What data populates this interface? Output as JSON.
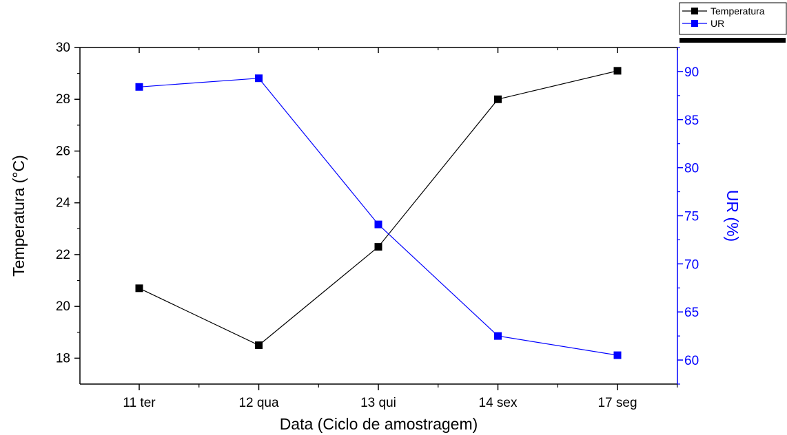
{
  "chart_data": {
    "type": "line",
    "categories": [
      "11 ter",
      "12 qua",
      "13 qui",
      "14 sex",
      "17 seg"
    ],
    "xlabel": "Data (Ciclo de amostragem)",
    "series": [
      {
        "name": "Temperatura",
        "axis": "left",
        "color": "#000000",
        "values": [
          20.7,
          18.5,
          22.3,
          28.0,
          29.1
        ]
      },
      {
        "name": "UR",
        "axis": "right",
        "color": "#0000ff",
        "values": [
          88.4,
          89.3,
          74.1,
          62.5,
          60.5
        ]
      }
    ],
    "y_left": {
      "label": "Temperatura (°C)",
      "ylim": [
        17,
        30
      ],
      "ticks": [
        18,
        20,
        22,
        24,
        26,
        28,
        30
      ]
    },
    "y_right": {
      "label": "UR (%)",
      "ylim": [
        57.5,
        92.5
      ],
      "ticks": [
        60,
        65,
        70,
        75,
        80,
        85,
        90
      ],
      "color": "#0000ff"
    },
    "legend_placement": "top-right",
    "grid": false
  }
}
